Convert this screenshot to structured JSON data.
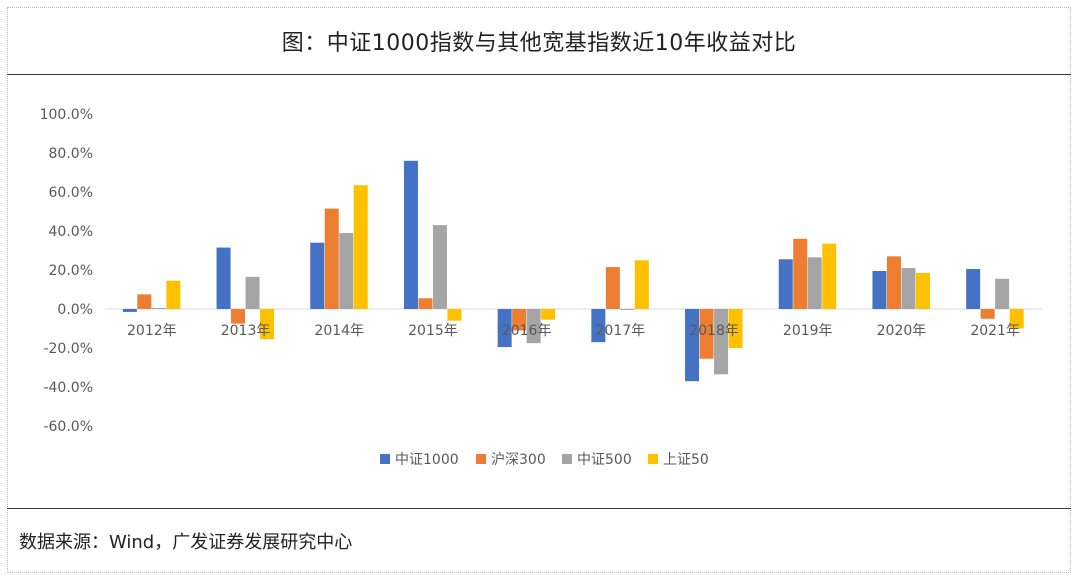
{
  "title": "图：中证1000指数与其他宽基指数近10年收益对比",
  "source": "数据来源：Wind，广发证券发展研究中心",
  "colors": {
    "中证1000": "#4472C4",
    "沪深300": "#ED7D31",
    "中证500": "#A5A5A5",
    "上证50": "#FFC000"
  },
  "chart_data": {
    "type": "bar",
    "categories": [
      "2012年",
      "2013年",
      "2014年",
      "2015年",
      "2016年",
      "2017年",
      "2018年",
      "2019年",
      "2020年",
      "2021年"
    ],
    "series": [
      {
        "name": "中证1000",
        "values": [
          -1.5,
          31.5,
          34.0,
          76.0,
          -19.5,
          -17.0,
          -37.0,
          25.5,
          19.5,
          20.5
        ]
      },
      {
        "name": "沪深300",
        "values": [
          7.5,
          -7.5,
          51.5,
          5.5,
          -11.0,
          21.5,
          -25.5,
          36.0,
          27.0,
          -5.0
        ]
      },
      {
        "name": "中证500",
        "values": [
          0.5,
          16.5,
          39.0,
          43.0,
          -17.5,
          -0.5,
          -33.5,
          26.5,
          21.0,
          15.5
        ]
      },
      {
        "name": "上证50",
        "values": [
          14.5,
          -15.5,
          63.5,
          -6.0,
          -5.5,
          25.0,
          -20.0,
          33.5,
          18.5,
          -10.0
        ]
      }
    ],
    "yticks": [
      "100.0%",
      "80.0%",
      "60.0%",
      "40.0%",
      "20.0%",
      "0.0%",
      "-20.0%",
      "-40.0%",
      "-60.0%"
    ],
    "ylim": [
      -60,
      100
    ],
    "legend_position": "bottom",
    "grid": false
  }
}
